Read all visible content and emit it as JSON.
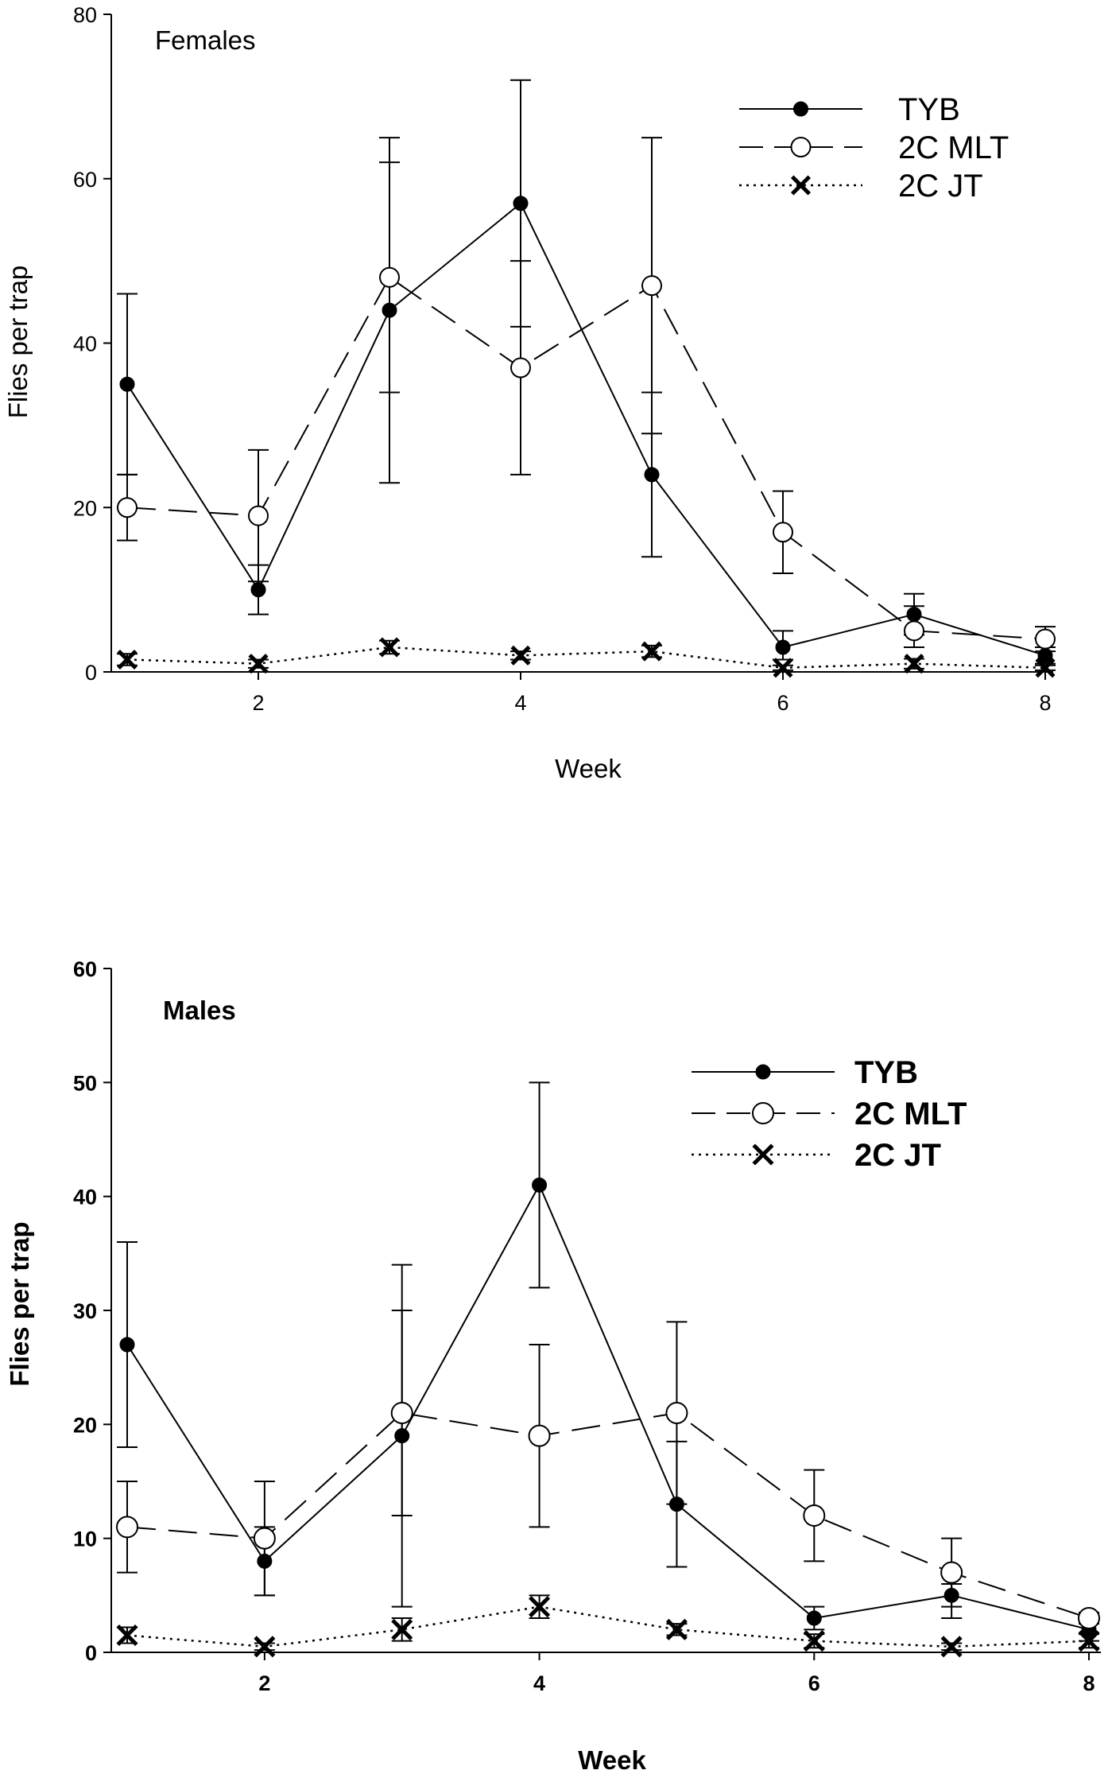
{
  "chart_data": [
    {
      "type": "line",
      "title": "Females",
      "xlabel": "Week",
      "ylabel": "Flies per trap",
      "xlim": [
        1,
        8
      ],
      "ylim": [
        0,
        80
      ],
      "xticks": [
        "2",
        "4",
        "6",
        "8"
      ],
      "yticks": [
        "0",
        "20",
        "40",
        "60",
        "80"
      ],
      "legend_position": "top-right",
      "series": [
        {
          "name": "TYB",
          "marker": "filled-circle",
          "line": "solid",
          "x": [
            1,
            2,
            3,
            4,
            5,
            6,
            7,
            8
          ],
          "values": [
            35,
            10,
            44,
            57,
            24,
            3,
            7,
            2
          ],
          "error_low": [
            24,
            7,
            23,
            42,
            14,
            1.5,
            4.5,
            1
          ],
          "error_high": [
            46,
            13,
            65,
            72,
            34,
            5,
            9.5,
            3
          ]
        },
        {
          "name": "2C MLT",
          "marker": "open-circle",
          "line": "dashed",
          "x": [
            1,
            2,
            3,
            4,
            5,
            6,
            7,
            8
          ],
          "values": [
            20,
            19,
            48,
            37,
            47,
            17,
            5,
            4
          ],
          "error_low": [
            16,
            11,
            34,
            24,
            29,
            12,
            3,
            2.5
          ],
          "error_high": [
            24,
            27,
            62,
            50,
            65,
            22,
            8,
            5.5
          ]
        },
        {
          "name": "2C JT",
          "marker": "x",
          "line": "dotted",
          "x": [
            1,
            2,
            3,
            4,
            5,
            6,
            7,
            8
          ],
          "values": [
            1.5,
            1,
            3,
            2,
            2.5,
            0.5,
            1,
            0.5
          ],
          "error_low": [
            0.8,
            0.5,
            2.2,
            1.5,
            1.8,
            0.2,
            0.4,
            0.2
          ],
          "error_high": [
            2.2,
            1.5,
            3.8,
            2.5,
            3.2,
            0.8,
            1.6,
            0.8
          ]
        }
      ]
    },
    {
      "type": "line",
      "title": "Males",
      "xlabel": "Week",
      "ylabel": "Flies per trap",
      "xlim": [
        1,
        8
      ],
      "ylim": [
        0,
        60
      ],
      "xticks": [
        "2",
        "4",
        "6",
        "8"
      ],
      "yticks": [
        "0",
        "10",
        "20",
        "30",
        "40",
        "50",
        "60"
      ],
      "legend_position": "top-right",
      "series": [
        {
          "name": "TYB",
          "marker": "filled-circle",
          "line": "solid",
          "x": [
            1,
            2,
            3,
            4,
            5,
            6,
            7,
            8
          ],
          "values": [
            27,
            8,
            19,
            41,
            13,
            3,
            5,
            2
          ],
          "error_low": [
            18,
            5,
            12,
            32,
            7.5,
            2,
            3,
            1
          ],
          "error_high": [
            36,
            11,
            30,
            50,
            18.5,
            4,
            6,
            3
          ]
        },
        {
          "name": "2C MLT",
          "marker": "open-circle",
          "line": "dashed",
          "x": [
            1,
            2,
            3,
            4,
            5,
            6,
            7,
            8
          ],
          "values": [
            11,
            10,
            21,
            19,
            21,
            12,
            7,
            3
          ],
          "error_low": [
            7,
            5,
            4,
            11,
            13,
            8,
            4,
            2.5
          ],
          "error_high": [
            15,
            15,
            34,
            27,
            29,
            16,
            10,
            3.5
          ]
        },
        {
          "name": "2C JT",
          "marker": "x",
          "line": "dotted",
          "x": [
            1,
            2,
            3,
            4,
            5,
            6,
            7,
            8
          ],
          "values": [
            1.5,
            0.5,
            2,
            4,
            2,
            1,
            0.5,
            1
          ],
          "error_low": [
            0.8,
            0.2,
            1,
            3,
            1.5,
            0.4,
            0.2,
            0.4
          ],
          "error_high": [
            2.2,
            0.8,
            3,
            5,
            2.5,
            1.6,
            0.8,
            1.6
          ]
        }
      ]
    }
  ]
}
